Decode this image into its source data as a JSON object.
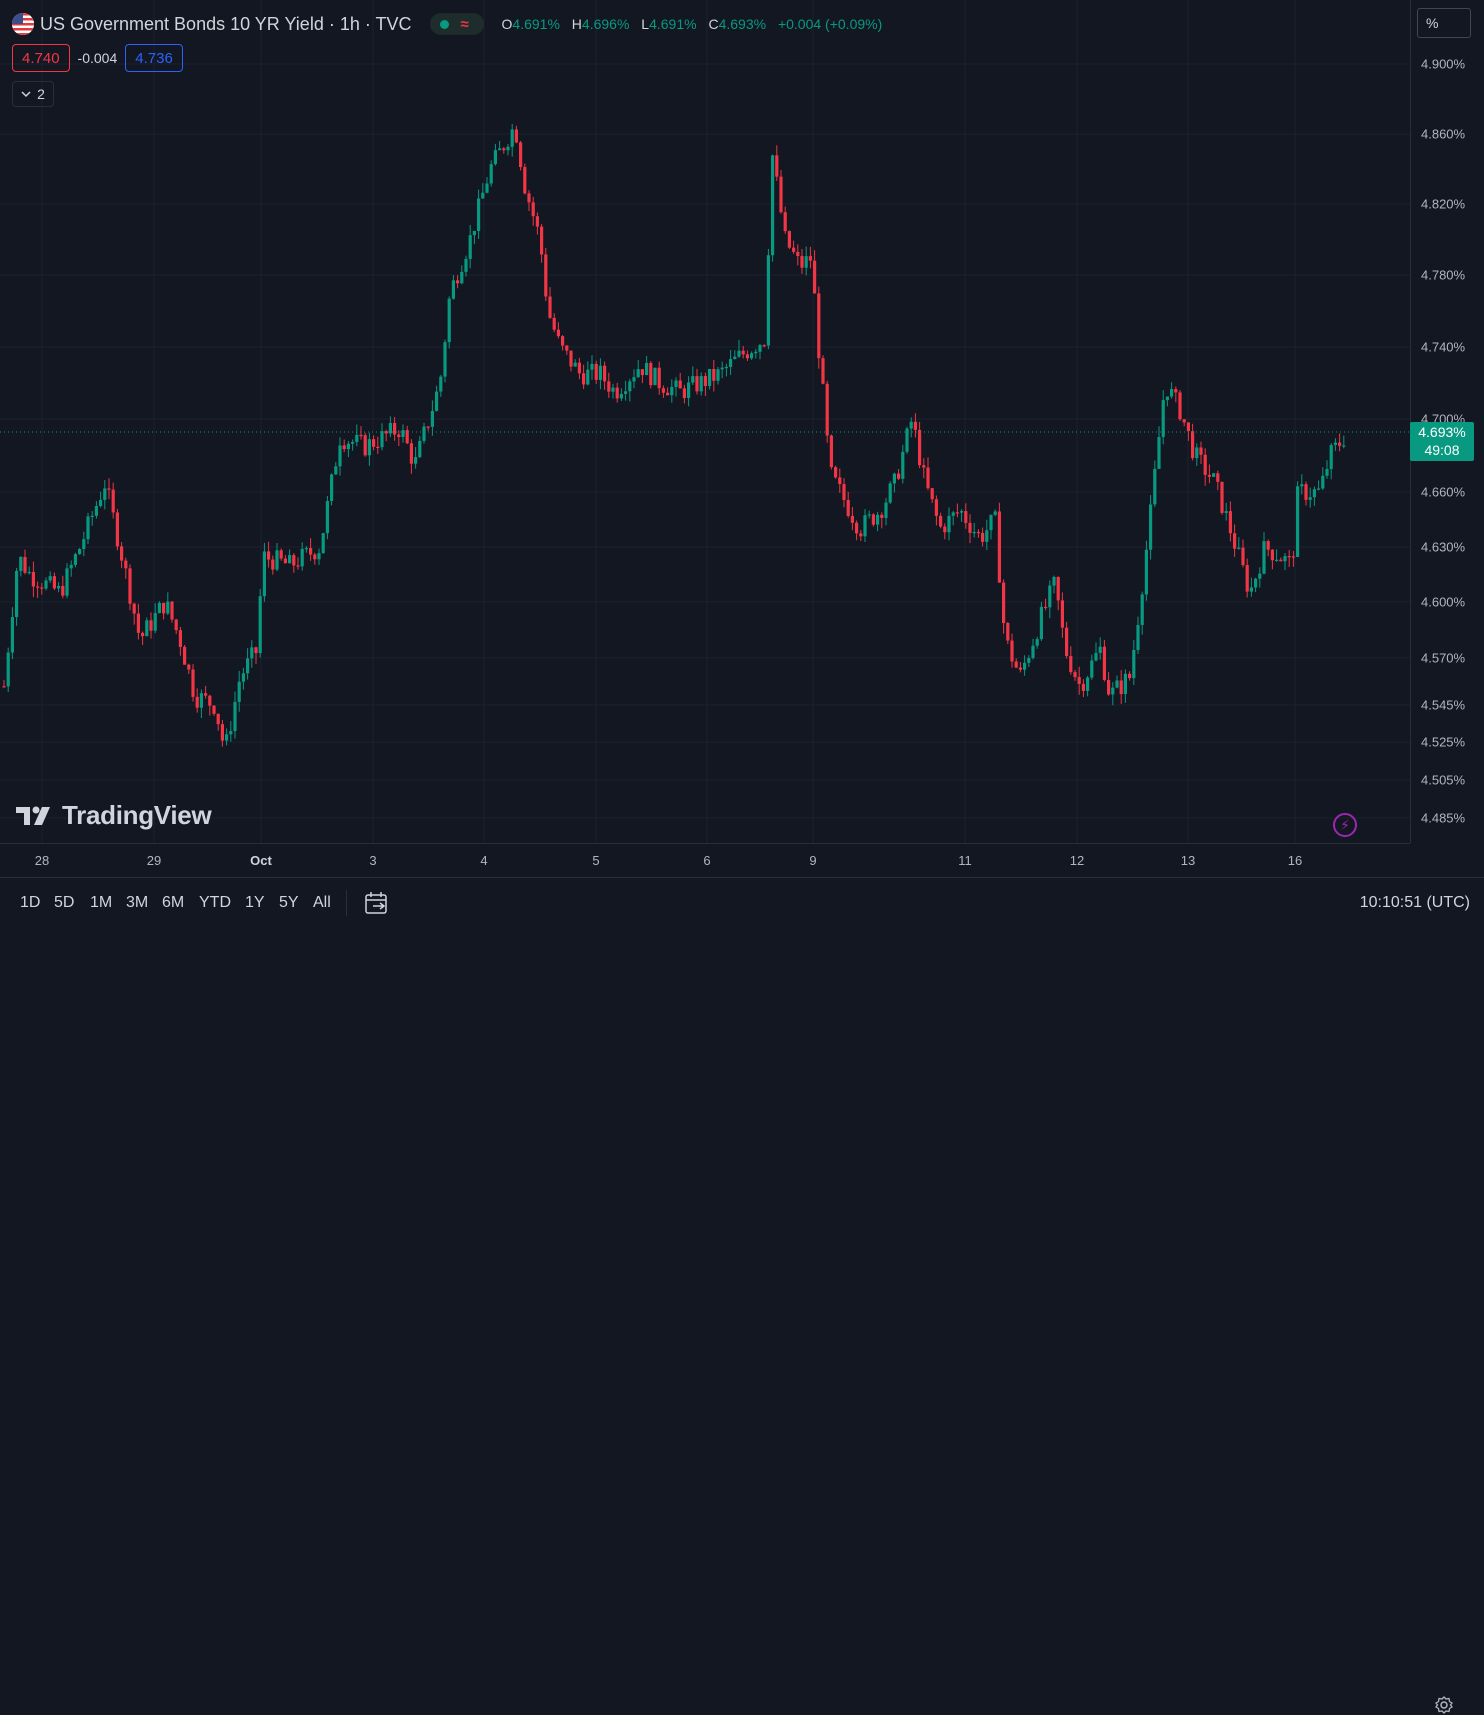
{
  "header": {
    "title": "US Government Bonds 10 YR Yield · 1h · TVC",
    "ohlc": {
      "o_label": "O",
      "o": "4.691%",
      "h_label": "H",
      "h": "4.696%",
      "l_label": "L",
      "l": "4.691%",
      "c_label": "C",
      "c": "4.693%",
      "change": "+0.004 (+0.09%)"
    },
    "sell_price": "4.740",
    "spread": "-0.004",
    "buy_price": "4.736",
    "indicators_collapsed_count": "2"
  },
  "price_axis": {
    "unit": "%",
    "labels": [
      "4.900%",
      "4.860%",
      "4.820%",
      "4.780%",
      "4.740%",
      "4.700%",
      "4.660%",
      "4.630%",
      "4.600%",
      "4.570%",
      "4.545%",
      "4.525%",
      "4.505%",
      "4.485%"
    ],
    "current_price": "4.693%",
    "countdown": "49:08"
  },
  "time_axis": {
    "labels": [
      "28",
      "29",
      "Oct",
      "3",
      "4",
      "5",
      "6",
      "9",
      "11",
      "12",
      "13",
      "16"
    ]
  },
  "bottom_bar": {
    "ranges": [
      "1D",
      "5D",
      "1M",
      "3M",
      "6M",
      "YTD",
      "1Y",
      "5Y",
      "All"
    ],
    "clock": "10:10:51 (UTC)"
  },
  "branding": {
    "logo_text": "TradingView"
  },
  "colors": {
    "background": "#131722",
    "grid": "#1e222d",
    "up": "#089981",
    "down": "#f23645",
    "text": "#d1d4dc"
  },
  "icons": [
    "us-flag-icon",
    "chevron-down-icon",
    "flash-icon",
    "gear-icon",
    "calendar-goto-icon",
    "tradingview-logo-icon"
  ]
}
